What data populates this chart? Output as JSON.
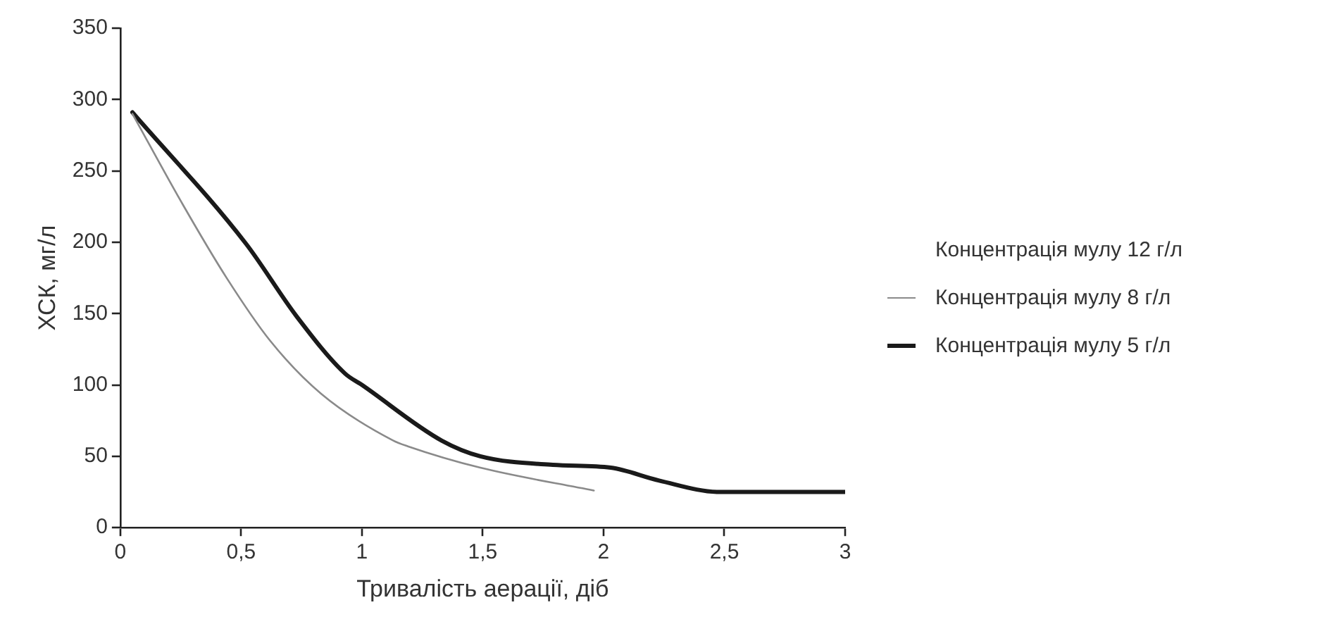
{
  "chart_data": {
    "type": "line",
    "xlabel": "Тривалість аерації, діб",
    "ylabel": "ХСК, мг/л",
    "xlim": [
      0,
      3
    ],
    "xticks": [
      0,
      {
        "value": 0.5,
        "label": "0,5"
      },
      1,
      {
        "value": 1.5,
        "label": "1,5"
      },
      2,
      {
        "value": 2.5,
        "label": "2,5"
      },
      3
    ],
    "ylim": [
      0,
      350
    ],
    "yticks": [
      0,
      50,
      100,
      150,
      200,
      250,
      300,
      350
    ],
    "grid": false,
    "legend": "right",
    "marker": "none",
    "line_style": "solid",
    "series": [
      {
        "name": "Концентрація мулу 12 г/л"
      },
      {
        "name": "Концентрація мулу 8 г/л",
        "color": "#8a8a8a",
        "x": [
          0.05,
          0.26,
          0.44,
          0.62,
          0.83,
          1.13,
          1.19,
          1.49,
          1.96
        ],
        "values": [
          290,
          226,
          175,
          131,
          94,
          61,
          57,
          42,
          26
        ]
      },
      {
        "name": "Концентрація мулу 5 г/л",
        "color": "#1a1a1a",
        "x": [
          0.05,
          0.52,
          0.73,
          0.93,
          1.0,
          1.33,
          1.49,
          1.79,
          2.03,
          2.23,
          2.48,
          3.0
        ],
        "values": [
          291,
          199,
          148,
          108,
          100,
          61,
          50,
          44,
          42,
          33,
          25,
          25
        ]
      }
    ]
  }
}
